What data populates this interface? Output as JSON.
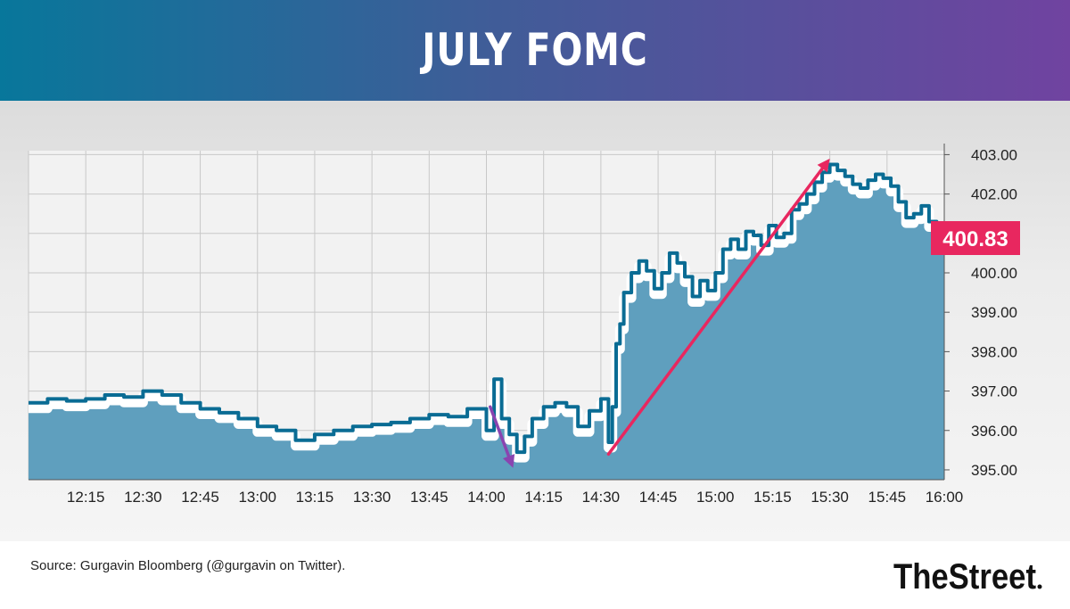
{
  "header": {
    "title": "JULY FOMC"
  },
  "source": "Source: Gurgavin Bloomberg (@gurgavin on Twitter).",
  "logo": {
    "text": "TheStreet"
  },
  "colors": {
    "header_left": "#08779b",
    "header_right": "#7043a0",
    "line": "#0a6c94",
    "area": "#5f9fbe",
    "arrow_down": "#8a44b0",
    "arrow_up": "#e8275f",
    "last_price_bg": "#e8275f"
  },
  "chart_data": {
    "type": "line",
    "xlabel": "",
    "ylabel": "",
    "x_ticks": [
      "12:15",
      "12:30",
      "12:45",
      "13:00",
      "13:15",
      "13:30",
      "13:45",
      "14:00",
      "14:15",
      "14:30",
      "14:45",
      "15:00",
      "15:15",
      "15:30",
      "15:45",
      "16:00"
    ],
    "y_ticks": [
      "395.00",
      "396.00",
      "397.00",
      "398.00",
      "399.00",
      "400.00",
      "401.00",
      "402.00",
      "403.00"
    ],
    "ylim": [
      394.75,
      403.1
    ],
    "xlim": [
      "12:00",
      "16:00"
    ],
    "last_price": "400.83",
    "grid": true,
    "series": [
      {
        "x": [
          "12:00",
          "12:05",
          "12:10",
          "12:15",
          "12:20",
          "12:25",
          "12:30",
          "12:35",
          "12:40",
          "12:45",
          "12:50",
          "12:55",
          "13:00",
          "13:05",
          "13:10",
          "13:15",
          "13:20",
          "13:25",
          "13:30",
          "13:35",
          "13:40",
          "13:45",
          "13:50",
          "13:55",
          "14:00",
          "14:02",
          "14:04",
          "14:06",
          "14:08",
          "14:10",
          "14:12",
          "14:15",
          "14:18",
          "14:21",
          "14:24",
          "14:27",
          "14:30",
          "14:32",
          "14:33",
          "14:34",
          "14:35",
          "14:36",
          "14:38",
          "14:40",
          "14:42",
          "14:44",
          "14:46",
          "14:48",
          "14:50",
          "14:52",
          "14:54",
          "14:56",
          "14:58",
          "15:00",
          "15:02",
          "15:04",
          "15:06",
          "15:08",
          "15:10",
          "15:12",
          "15:14",
          "15:16",
          "15:18",
          "15:20",
          "15:22",
          "15:24",
          "15:26",
          "15:28",
          "15:30",
          "15:32",
          "15:34",
          "15:36",
          "15:38",
          "15:40",
          "15:42",
          "15:44",
          "15:46",
          "15:48",
          "15:50",
          "15:52",
          "15:54",
          "15:56",
          "15:58",
          "16:00"
        ],
        "values": [
          396.7,
          396.8,
          396.75,
          396.8,
          396.9,
          396.85,
          397.0,
          396.9,
          396.7,
          396.55,
          396.45,
          396.3,
          396.1,
          396.0,
          395.75,
          395.9,
          396.0,
          396.1,
          396.15,
          396.2,
          396.3,
          396.4,
          396.35,
          396.55,
          396.0,
          397.3,
          396.3,
          395.9,
          395.45,
          395.85,
          396.3,
          396.6,
          396.7,
          396.6,
          396.1,
          396.5,
          396.8,
          395.7,
          396.6,
          398.2,
          398.7,
          399.5,
          400.0,
          400.3,
          400.05,
          399.6,
          400.0,
          400.5,
          400.25,
          399.9,
          399.4,
          399.8,
          399.55,
          400.0,
          400.6,
          400.85,
          400.6,
          401.05,
          400.95,
          400.7,
          401.2,
          400.9,
          401.0,
          401.6,
          401.75,
          402.0,
          402.3,
          402.55,
          402.75,
          402.6,
          402.45,
          402.25,
          402.15,
          402.35,
          402.5,
          402.4,
          402.2,
          401.8,
          401.4,
          401.5,
          401.7,
          401.3,
          401.0,
          400.83
        ]
      }
    ],
    "annotations": [
      {
        "type": "arrow",
        "color": "purple",
        "from": [
          "14:01",
          396.6
        ],
        "to": [
          "14:07",
          395.05
        ]
      },
      {
        "type": "arrow",
        "color": "pink",
        "from": [
          "14:32",
          395.4
        ],
        "to": [
          "15:30",
          402.9
        ]
      }
    ]
  }
}
